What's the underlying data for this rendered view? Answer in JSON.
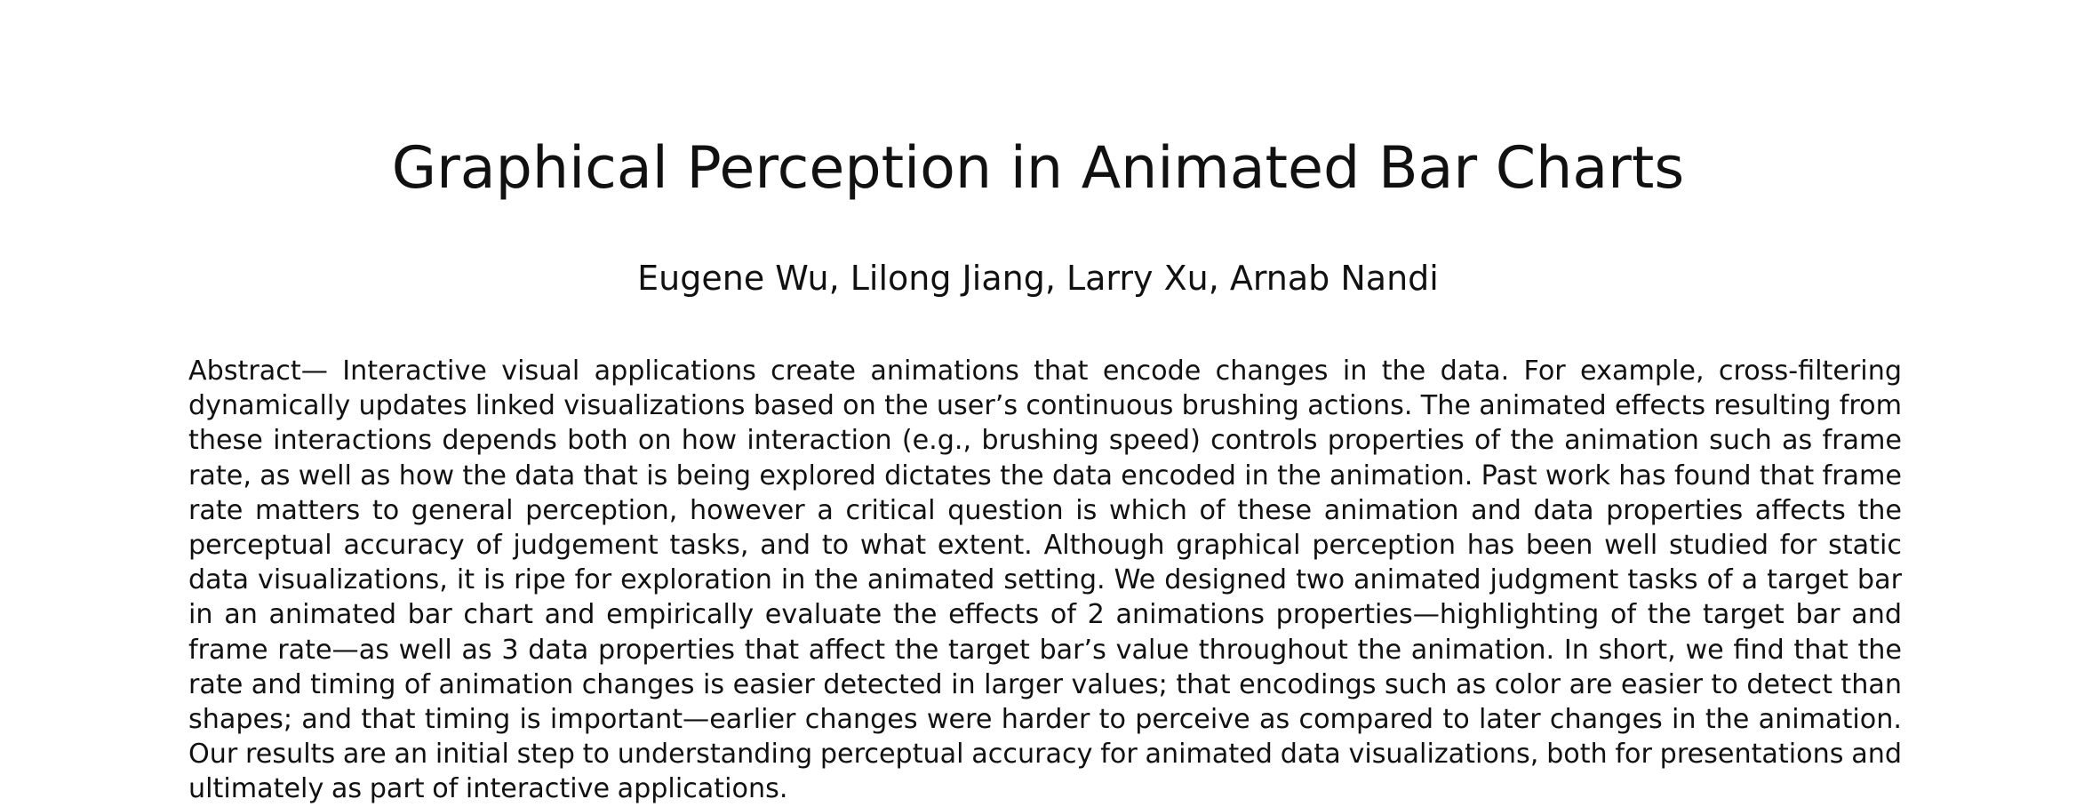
{
  "paper": {
    "title": "Graphical Perception in Animated Bar Charts",
    "authors": "Eugene Wu, Lilong Jiang, Larry Xu, Arnab Nandi",
    "abstract_label": "Abstract—",
    "abstract_text": " Interactive visual applications create animations that encode changes in the data. For example, cross-filtering dynamically updates linked visualizations based on the user’s continuous brushing actions. The animated effects resulting from these interactions depends both on how interaction (e.g., brushing speed) controls properties of the animation such as frame rate, as well as how the data that is being explored dictates the data encoded in the animation. Past work has found that frame rate matters to general perception, however a critical question is which of these animation and data properties affects the perceptual accuracy of judgement tasks, and to what extent. Although graphical perception has been well studied for static data visualizations, it is ripe for exploration in the animated setting. We designed two animated judgment tasks of a target bar in an animated bar chart and empirically evaluate the effects of 2 animations properties—highlighting of the target bar and frame rate—as well as 3 data properties that affect the target bar’s value throughout the animation. In short, we find that the rate and timing of animation changes is easier detected in larger values; that encodings such as color are easier to detect than shapes; and that timing is important—earlier changes were harder to perceive as compared to later changes in the animation. Our results are an initial step to understanding perceptual accuracy for animated data visualizations, both for presentations and ultimately as part of interactive applications."
  }
}
